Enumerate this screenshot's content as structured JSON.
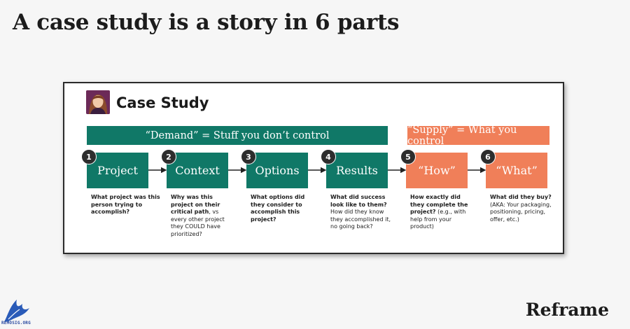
{
  "page_title": "A case study is a story in 6 parts",
  "brand": "Reframe",
  "watermark": "REMOSIG.ORG",
  "card": {
    "title": "Case Study",
    "demand_label": "“Demand” = Stuff you don’t control",
    "supply_label": "“Supply” = What you control"
  },
  "steps": [
    {
      "number": "1",
      "label": "Project",
      "color": "#107867",
      "desc_bold": "What project was this person trying to accomplish?",
      "desc_rest": ""
    },
    {
      "number": "2",
      "label": "Context",
      "color": "#107867",
      "desc_bold": "Why was this project on their critical path",
      "desc_rest": ", vs every other project they COULD have prioritized?"
    },
    {
      "number": "3",
      "label": "Options",
      "color": "#107867",
      "desc_bold": "What options did they consider to accomplish this project?",
      "desc_rest": ""
    },
    {
      "number": "4",
      "label": "Results",
      "color": "#107867",
      "desc_bold": "What did success look like to them?",
      "desc_rest": " How did they know they accomplished it, no going back?"
    },
    {
      "number": "5",
      "label": "“How”",
      "color": "#f07f59",
      "desc_bold": "How exactly did they complete the project?",
      "desc_rest": " (e.g., with help from your product)"
    },
    {
      "number": "6",
      "label": "“What”",
      "color": "#f07f59",
      "desc_bold": "What did they buy?",
      "desc_rest": " (AKA: Your packaging, positioning, pricing, offer, etc.)"
    }
  ],
  "colors": {
    "demand": "#107867",
    "supply": "#f07f59",
    "badge": "#2d2d2d"
  }
}
